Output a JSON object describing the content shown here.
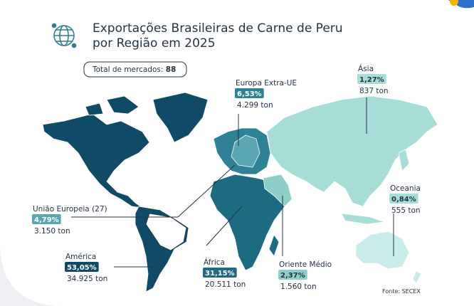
{
  "header": {
    "title_line1": "Exportações Brasileiras de Carne de Peru",
    "title_line2": "por Região em 2025"
  },
  "markets": {
    "label": "Total de mercados:",
    "value": "88"
  },
  "regions": [
    {
      "name": "Europa Extra-UE",
      "share": "6,53%",
      "volume": "4.299 ton"
    },
    {
      "name": "Ásia",
      "share": "1,27%",
      "volume": "837 ton"
    },
    {
      "name": "Oceania",
      "share": "0,84%",
      "volume": "555 ton"
    },
    {
      "name": "União Europeia (27)",
      "share": "4,79%",
      "volume": "3.150 ton"
    },
    {
      "name": "América",
      "share": "53,05%",
      "volume": "34.925 ton"
    },
    {
      "name": "África",
      "share": "31,15%",
      "volume": "20.511 ton"
    },
    {
      "name": "Oriente Médio",
      "share": "2,37%",
      "volume": "1.560 ton"
    }
  ],
  "source": "Fonte: SECEX"
}
